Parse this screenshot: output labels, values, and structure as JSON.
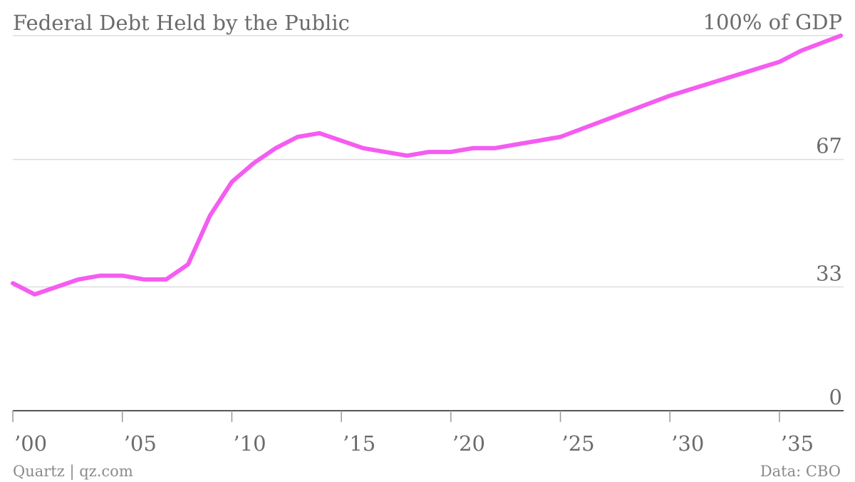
{
  "chart_data": {
    "type": "line",
    "title": "Federal Debt Held by the Public",
    "unit_label": "100% of GDP",
    "ylim": [
      0,
      100
    ],
    "yticks": [
      {
        "value": 100,
        "label": "100% of GDP"
      },
      {
        "value": 67,
        "label": "67"
      },
      {
        "value": 33,
        "label": "33"
      },
      {
        "value": 0,
        "label": "0"
      }
    ],
    "xlim": [
      2000,
      2037.8
    ],
    "xticks": [
      {
        "value": 2000,
        "label": "’00"
      },
      {
        "value": 2005,
        "label": "’05"
      },
      {
        "value": 2010,
        "label": "’10"
      },
      {
        "value": 2015,
        "label": "’15"
      },
      {
        "value": 2020,
        "label": "’20"
      },
      {
        "value": 2025,
        "label": "’25"
      },
      {
        "value": 2030,
        "label": "’30"
      },
      {
        "value": 2035,
        "label": "’35"
      }
    ],
    "grid": true,
    "series": [
      {
        "color": "#f55cf0",
        "points": [
          {
            "x": 2000,
            "y": 34
          },
          {
            "x": 2001,
            "y": 31
          },
          {
            "x": 2002,
            "y": 33
          },
          {
            "x": 2003,
            "y": 35
          },
          {
            "x": 2004,
            "y": 36
          },
          {
            "x": 2005,
            "y": 36
          },
          {
            "x": 2006,
            "y": 35
          },
          {
            "x": 2007,
            "y": 35
          },
          {
            "x": 2008,
            "y": 39
          },
          {
            "x": 2009,
            "y": 52
          },
          {
            "x": 2010,
            "y": 61
          },
          {
            "x": 2011,
            "y": 66
          },
          {
            "x": 2012,
            "y": 70
          },
          {
            "x": 2013,
            "y": 73
          },
          {
            "x": 2014,
            "y": 74
          },
          {
            "x": 2015,
            "y": 72
          },
          {
            "x": 2016,
            "y": 70
          },
          {
            "x": 2017,
            "y": 69
          },
          {
            "x": 2018,
            "y": 68
          },
          {
            "x": 2019,
            "y": 69
          },
          {
            "x": 2020,
            "y": 69
          },
          {
            "x": 2021,
            "y": 70
          },
          {
            "x": 2022,
            "y": 70
          },
          {
            "x": 2023,
            "y": 71
          },
          {
            "x": 2024,
            "y": 72
          },
          {
            "x": 2025,
            "y": 73
          },
          {
            "x": 2030,
            "y": 84
          },
          {
            "x": 2035,
            "y": 93
          },
          {
            "x": 2036,
            "y": 96
          },
          {
            "x": 2037.8,
            "y": 100
          }
        ]
      }
    ]
  },
  "footer": {
    "credit": "Quartz | qz.com",
    "source": "Data: CBO"
  }
}
